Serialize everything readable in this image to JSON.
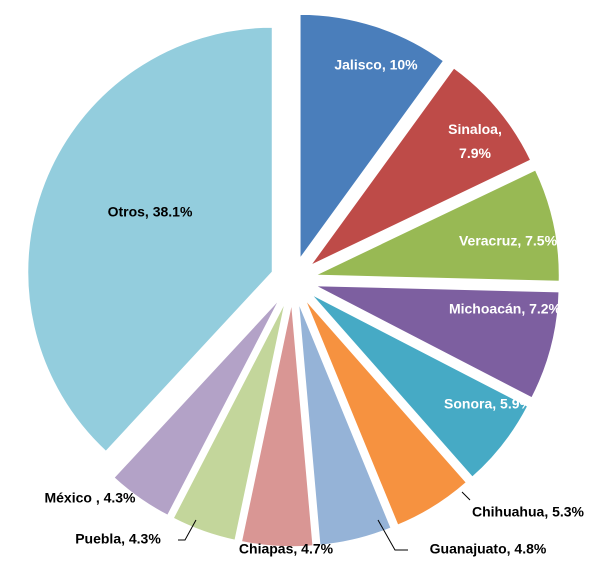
{
  "chart_data": {
    "type": "pie",
    "categories": [
      "Jalisco",
      "Sinaloa",
      "Veracruz",
      "Michoacán",
      "Sonora",
      "Chihuahua",
      "Guanajuato",
      "Chiapas",
      "Puebla",
      "México",
      "Otros"
    ],
    "values": [
      10,
      7.9,
      7.5,
      7.2,
      5.9,
      5.3,
      4.8,
      4.7,
      4.3,
      4.3,
      38.1
    ],
    "value_labels": [
      "Jalisco, 10%",
      "Sinaloa, 7.9%",
      "Veracruz, 7.5%",
      "Michoacán, 7.2%",
      "Sonora, 5.9%",
      "Chihuahua, 5.3%",
      "Guanajuato, 4.8%",
      "Chiapas, 4.7%",
      "Puebla, 4.3%",
      "México , 4.3%",
      "Otros, 38.1%"
    ],
    "colors": [
      "#4a7ebb",
      "#be4b48",
      "#98b954",
      "#7d5fa0",
      "#46aac5",
      "#f69240",
      "#95b3d7",
      "#d99694",
      "#c3d69b",
      "#b3a2c7",
      "#93cddd"
    ]
  }
}
